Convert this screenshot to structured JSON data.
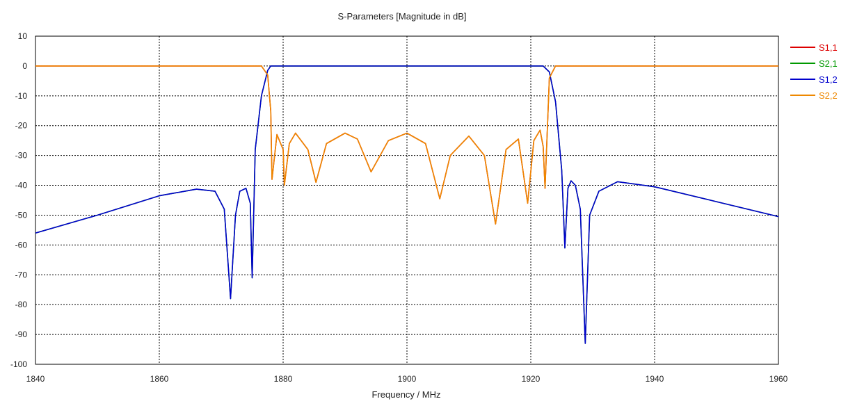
{
  "chart_data": {
    "type": "line",
    "title": "S-Parameters [Magnitude in dB]",
    "xlabel": "Frequency / MHz",
    "ylabel": "",
    "xlim": [
      1840,
      1960
    ],
    "ylim": [
      -100,
      10
    ],
    "xticks": [
      1840,
      1860,
      1880,
      1900,
      1920,
      1940,
      1960
    ],
    "yticks": [
      10,
      0,
      -10,
      -20,
      -30,
      -40,
      -50,
      -60,
      -70,
      -80,
      -90,
      -100
    ],
    "grid": true,
    "legend_position": "right",
    "series": [
      {
        "name": "S1,1",
        "color": "#dd0000",
        "x": [
          1840,
          1876.5,
          1877.5,
          1878.0,
          1878.2,
          1879.0,
          1880.0,
          1880.2,
          1881.0,
          1882.0,
          1884.0,
          1885.3,
          1887.0,
          1890.0,
          1892.0,
          1894.2,
          1897.0,
          1900.0,
          1903.0,
          1905.3,
          1907.0,
          1910.0,
          1912.5,
          1914.3,
          1916.0,
          1918.0,
          1919.5,
          1920.5,
          1921.5,
          1922.0,
          1922.3,
          1923.0,
          1924.0,
          1960
        ],
        "y": [
          0,
          0,
          -3,
          -15,
          -38,
          -23,
          -28,
          -40,
          -26,
          -22.5,
          -28,
          -39,
          -26,
          -22.5,
          -24.5,
          -35.5,
          -25,
          -22.5,
          -26,
          -44.5,
          -30,
          -23.5,
          -30,
          -53,
          -28,
          -24.5,
          -46,
          -25,
          -21.5,
          -27,
          -41,
          -4,
          0,
          0
        ]
      },
      {
        "name": "S2,1",
        "color": "#009900",
        "x": [
          1840,
          1850,
          1860,
          1866,
          1869,
          1870.5,
          1871.5,
          1872.3,
          1873.0,
          1874.0,
          1874.7,
          1875.0,
          1875.5,
          1876.5,
          1877.5,
          1878.0,
          1879.0,
          1921.0,
          1922.0,
          1923.0,
          1924.0,
          1925.0,
          1925.5,
          1926.0,
          1926.5,
          1927.2,
          1928.0,
          1928.8,
          1929.5,
          1931.0,
          1934.0,
          1940.0,
          1950.0,
          1960
        ],
        "y": [
          -56,
          -50,
          -43.5,
          -41.3,
          -42,
          -48,
          -78,
          -50,
          -42,
          -41,
          -46,
          -71,
          -28,
          -10,
          -1.5,
          0,
          0,
          0,
          0,
          -2,
          -12,
          -35,
          -61,
          -41,
          -38.5,
          -40,
          -48,
          -93,
          -50,
          -42,
          -38.8,
          -40.5,
          -45.5,
          -50.5
        ]
      },
      {
        "name": "S1,2",
        "color": "#0000cc",
        "x": [
          1840,
          1850,
          1860,
          1866,
          1869,
          1870.5,
          1871.5,
          1872.3,
          1873.0,
          1874.0,
          1874.7,
          1875.0,
          1875.5,
          1876.5,
          1877.5,
          1878.0,
          1879.0,
          1921.0,
          1922.0,
          1923.0,
          1924.0,
          1925.0,
          1925.5,
          1926.0,
          1926.5,
          1927.2,
          1928.0,
          1928.8,
          1929.5,
          1931.0,
          1934.0,
          1940.0,
          1950.0,
          1960
        ],
        "y": [
          -56,
          -50,
          -43.5,
          -41.3,
          -42,
          -48,
          -78,
          -50,
          -42,
          -41,
          -46,
          -71,
          -28,
          -10,
          -1.5,
          0,
          0,
          0,
          0,
          -2,
          -12,
          -35,
          -61,
          -41,
          -38.5,
          -40,
          -48,
          -93,
          -50,
          -42,
          -38.8,
          -40.5,
          -45.5,
          -50.5
        ]
      },
      {
        "name": "S2,2",
        "color": "#ee8800",
        "x": [
          1840,
          1876.5,
          1877.5,
          1878.0,
          1878.2,
          1879.0,
          1880.0,
          1880.2,
          1881.0,
          1882.0,
          1884.0,
          1885.3,
          1887.0,
          1890.0,
          1892.0,
          1894.2,
          1897.0,
          1900.0,
          1903.0,
          1905.3,
          1907.0,
          1910.0,
          1912.5,
          1914.3,
          1916.0,
          1918.0,
          1919.5,
          1920.5,
          1921.5,
          1922.0,
          1922.3,
          1923.0,
          1924.0,
          1960
        ],
        "y": [
          0,
          0,
          -3,
          -15,
          -38,
          -23,
          -28,
          -40,
          -26,
          -22.5,
          -28,
          -39,
          -26,
          -22.5,
          -24.5,
          -35.5,
          -25,
          -22.5,
          -26,
          -44.5,
          -30,
          -23.5,
          -30,
          -53,
          -28,
          -24.5,
          -46,
          -25,
          -21.5,
          -27,
          -41,
          -4,
          0,
          0
        ]
      }
    ]
  }
}
